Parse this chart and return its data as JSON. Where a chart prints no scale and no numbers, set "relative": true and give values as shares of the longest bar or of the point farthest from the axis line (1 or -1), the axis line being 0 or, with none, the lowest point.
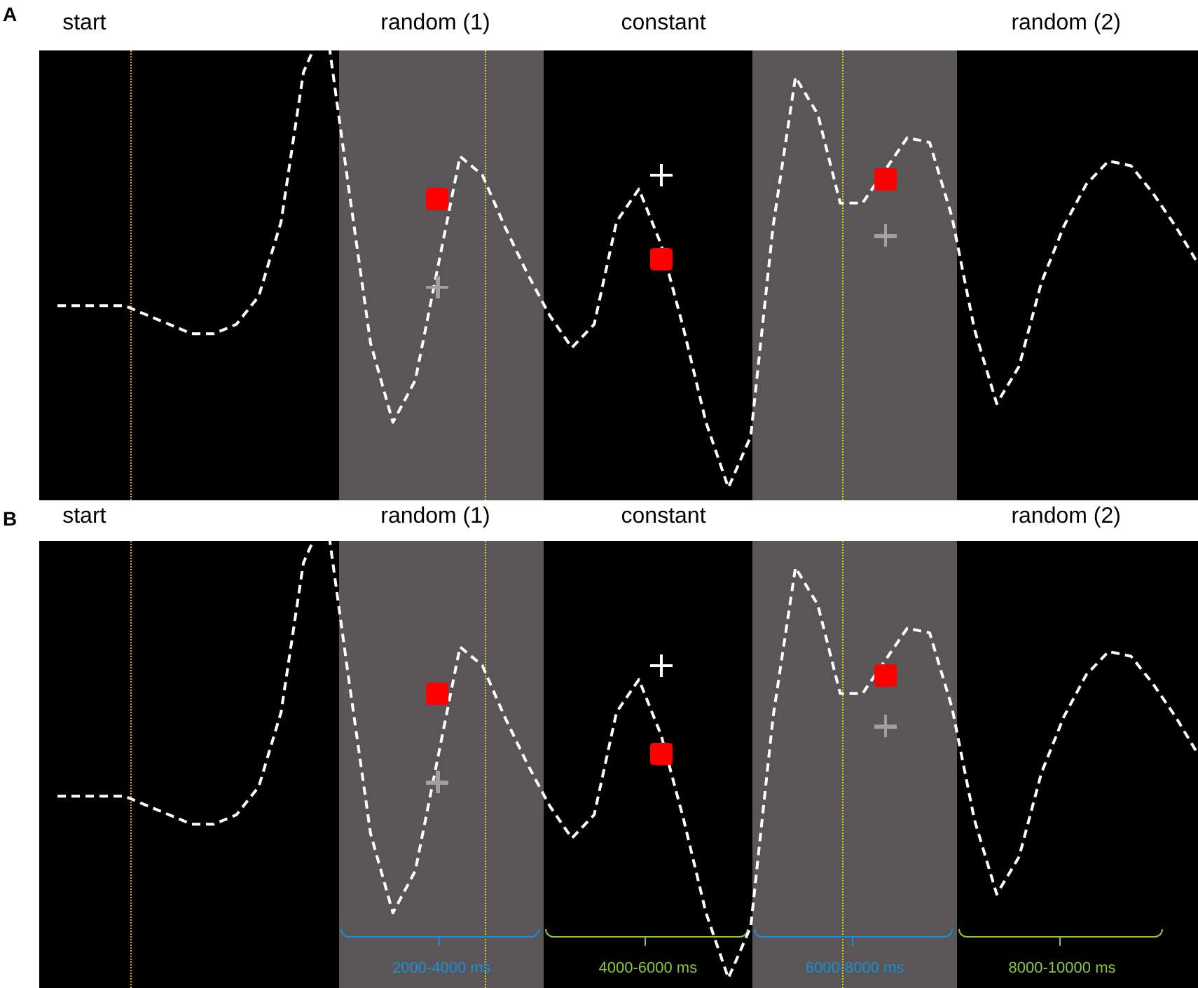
{
  "chart_data": [
    {
      "type": "line",
      "title": "A",
      "relative": true,
      "legend": false,
      "categories": [
        null,
        null,
        null,
        null,
        null,
        null,
        null,
        null,
        null,
        null,
        null,
        null,
        null,
        null,
        null,
        null,
        null,
        null,
        null,
        null,
        null,
        null,
        null,
        null,
        null,
        null,
        null,
        null,
        null,
        null,
        null,
        null,
        null,
        null,
        null,
        null,
        null,
        null,
        null,
        null,
        null,
        null,
        null,
        null,
        null,
        null,
        null,
        null,
        null,
        null,
        null,
        null
      ],
      "annotations": [
        "start",
        "random (1)",
        "constant",
        "random (2)"
      ],
      "series": [
        {
          "color": "#ffffff",
          "line_style": "dashed",
          "marker": "none",
          "values": [
            0.39,
            0.39,
            0.39,
            0.39,
            0.37,
            0.35,
            0.33,
            0.33,
            0.35,
            0.41,
            0.57,
            0.89,
            1.0,
            0.65,
            0.31,
            0.14,
            0.23,
            null,
            0.71,
            0.67,
            0.56,
            0.46,
            0.37,
            0.3,
            0.35,
            0.57,
            0.64,
            0.52,
            0.34,
            0.14,
            0,
            0.11,
            0.56,
            0.88,
            0.8,
            0.61,
            0.61,
            0.68,
            0.75,
            0.74,
            0.58,
            0.34,
            0.18,
            0.26,
            0.44,
            0.56,
            0.65,
            0.7,
            0.69,
            0.63,
            0.56,
            0.48
          ]
        }
      ]
    },
    {
      "type": "line",
      "title": "B",
      "relative": true,
      "legend": false,
      "categories": [
        null,
        null,
        null,
        null,
        null,
        null,
        null,
        null,
        null,
        null,
        null,
        null,
        null,
        null,
        null,
        null,
        null,
        null,
        null,
        null,
        null,
        null,
        null,
        null,
        null,
        null,
        null,
        null,
        null,
        null,
        null,
        null,
        null,
        null,
        null,
        null,
        null,
        null,
        null,
        null,
        null,
        null,
        null,
        null,
        null,
        null,
        null,
        null,
        null,
        null,
        null,
        null
      ],
      "annotations": [
        "start",
        "random (1)",
        "constant",
        "random (2)",
        "2000-4000 ms",
        "4000-6000 ms",
        "6000-8000 ms",
        "8000-10000 ms"
      ],
      "series": [
        {
          "color": "#ffffff",
          "line_style": "dashed",
          "marker": "none",
          "values": [
            0.39,
            0.39,
            0.39,
            0.39,
            0.37,
            0.35,
            0.33,
            0.33,
            0.35,
            0.41,
            0.57,
            0.89,
            1.0,
            0.65,
            0.31,
            0.14,
            0.23,
            null,
            0.71,
            0.67,
            0.56,
            0.46,
            0.37,
            0.3,
            0.35,
            0.57,
            0.64,
            0.52,
            0.34,
            0.14,
            0,
            0.11,
            0.56,
            0.88,
            0.8,
            0.61,
            0.61,
            0.68,
            0.75,
            0.74,
            0.58,
            0.34,
            0.18,
            0.26,
            0.44,
            0.56,
            0.65,
            0.7,
            0.69,
            0.63,
            0.56,
            0.48
          ]
        }
      ]
    }
  ]
}
